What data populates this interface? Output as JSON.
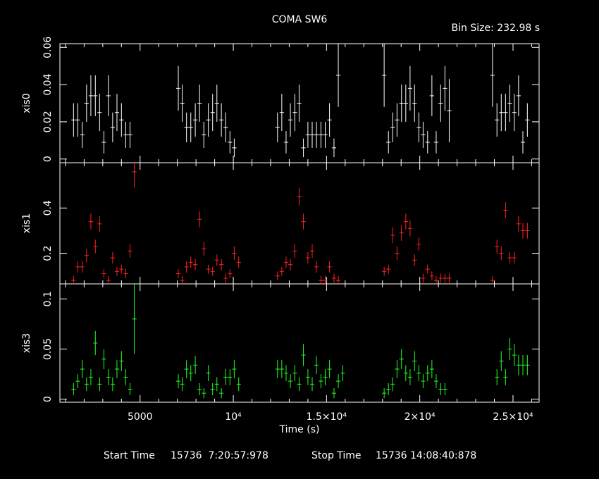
{
  "header": {
    "title": "COMA SW6",
    "bin_size": "Bin Size: 232.98 s"
  },
  "footer": {
    "start_label": "Start Time",
    "start_value": "15736  7:20:57:978",
    "stop_label": "Stop Time",
    "stop_value": "15736 14:08:40:878"
  },
  "colors": {
    "background": "#000000",
    "axes": "#ffffff",
    "xis0": "#ffffff",
    "xis1": "#ff2020",
    "xis3": "#20ff20"
  },
  "chart_data": {
    "type": "scatter",
    "title": "COMA SW6",
    "xlabel": "Time (s)",
    "xlim": [
      700,
      26400
    ],
    "x_ticks": [
      {
        "value": 5000,
        "label": "5000"
      },
      {
        "value": 10000,
        "label": "10⁴"
      },
      {
        "value": 15000,
        "label": "1.5×10⁴"
      },
      {
        "value": 20000,
        "label": "2×10⁴"
      },
      {
        "value": 25000,
        "label": "2.5×10⁴"
      }
    ],
    "x_err": 116.5,
    "panels": [
      {
        "name": "xis0",
        "ylabel": "xis0",
        "ylim": [
          -0.002,
          0.062
        ],
        "y_ticks": [
          {
            "value": 0,
            "label": "0"
          },
          {
            "value": 0.02,
            "label": "0.02"
          },
          {
            "value": 0.04,
            "label": "0.04"
          },
          {
            "value": 0.06,
            "label": "0.06"
          }
        ],
        "points": [
          [
            1430,
            0.021,
            0.009
          ],
          [
            1660,
            0.021,
            0.009
          ],
          [
            1900,
            0.013,
            0.007
          ],
          [
            2130,
            0.03,
            0.01
          ],
          [
            2360,
            0.034,
            0.011
          ],
          [
            2600,
            0.034,
            0.011
          ],
          [
            2830,
            0.025,
            0.01
          ],
          [
            3060,
            0.009,
            0.006
          ],
          [
            3300,
            0.034,
            0.011
          ],
          [
            3530,
            0.017,
            0.008
          ],
          [
            3760,
            0.025,
            0.01
          ],
          [
            4000,
            0.021,
            0.009
          ],
          [
            4230,
            0.013,
            0.007
          ],
          [
            4460,
            0.013,
            0.007
          ],
          [
            7050,
            0.038,
            0.012
          ],
          [
            7260,
            0.03,
            0.01
          ],
          [
            7490,
            0.017,
            0.008
          ],
          [
            7720,
            0.017,
            0.008
          ],
          [
            7960,
            0.021,
            0.009
          ],
          [
            8190,
            0.03,
            0.01
          ],
          [
            8420,
            0.013,
            0.007
          ],
          [
            8660,
            0.021,
            0.009
          ],
          [
            8890,
            0.025,
            0.01
          ],
          [
            9120,
            0.03,
            0.01
          ],
          [
            9360,
            0.021,
            0.009
          ],
          [
            9590,
            0.017,
            0.008
          ],
          [
            9820,
            0.009,
            0.006
          ],
          [
            10050,
            0.006,
            0.005
          ],
          [
            12370,
            0.017,
            0.008
          ],
          [
            12600,
            0.025,
            0.01
          ],
          [
            12830,
            0.009,
            0.006
          ],
          [
            13060,
            0.021,
            0.009
          ],
          [
            13300,
            0.025,
            0.01
          ],
          [
            13530,
            0.03,
            0.01
          ],
          [
            13760,
            0.006,
            0.005
          ],
          [
            14000,
            0.013,
            0.007
          ],
          [
            14230,
            0.013,
            0.007
          ],
          [
            14460,
            0.013,
            0.007
          ],
          [
            14700,
            0.013,
            0.007
          ],
          [
            14930,
            0.013,
            0.007
          ],
          [
            15160,
            0.021,
            0.009
          ],
          [
            15400,
            0.006,
            0.005
          ],
          [
            15630,
            0.045,
            0.017
          ],
          [
            18090,
            0.045,
            0.017
          ],
          [
            18320,
            0.009,
            0.006
          ],
          [
            18550,
            0.017,
            0.008
          ],
          [
            18780,
            0.021,
            0.009
          ],
          [
            19020,
            0.03,
            0.01
          ],
          [
            19250,
            0.03,
            0.01
          ],
          [
            19480,
            0.038,
            0.012
          ],
          [
            19720,
            0.03,
            0.01
          ],
          [
            19950,
            0.017,
            0.008
          ],
          [
            20180,
            0.013,
            0.007
          ],
          [
            20420,
            0.009,
            0.006
          ],
          [
            20650,
            0.034,
            0.011
          ],
          [
            20880,
            0.009,
            0.006
          ],
          [
            21120,
            0.03,
            0.01
          ],
          [
            21350,
            0.038,
            0.012
          ],
          [
            21580,
            0.026,
            0.017
          ],
          [
            23900,
            0.045,
            0.017
          ],
          [
            24140,
            0.021,
            0.009
          ],
          [
            24370,
            0.025,
            0.01
          ],
          [
            24600,
            0.025,
            0.01
          ],
          [
            24830,
            0.03,
            0.01
          ],
          [
            25070,
            0.025,
            0.01
          ],
          [
            25300,
            0.034,
            0.011
          ],
          [
            25530,
            0.009,
            0.006
          ],
          [
            25770,
            0.021,
            0.009
          ]
        ]
      },
      {
        "name": "xis1",
        "ylabel": "xis1",
        "ylim": [
          0.065,
          0.6
        ],
        "y_ticks": [
          {
            "value": 0.2,
            "label": "0.2"
          },
          {
            "value": 0.4,
            "label": "0.4"
          }
        ],
        "points": [
          [
            1430,
            0.08,
            0.02
          ],
          [
            1660,
            0.14,
            0.025
          ],
          [
            1900,
            0.14,
            0.025
          ],
          [
            2130,
            0.19,
            0.03
          ],
          [
            2360,
            0.34,
            0.035
          ],
          [
            2600,
            0.23,
            0.03
          ],
          [
            2830,
            0.33,
            0.035
          ],
          [
            3060,
            0.11,
            0.02
          ],
          [
            3300,
            0.08,
            0.02
          ],
          [
            3530,
            0.18,
            0.025
          ],
          [
            3760,
            0.12,
            0.02
          ],
          [
            4000,
            0.13,
            0.02
          ],
          [
            4230,
            0.11,
            0.02
          ],
          [
            4460,
            0.21,
            0.03
          ],
          [
            4690,
            0.56,
            0.07
          ],
          [
            7050,
            0.11,
            0.02
          ],
          [
            7260,
            0.08,
            0.02
          ],
          [
            7490,
            0.14,
            0.025
          ],
          [
            7720,
            0.16,
            0.025
          ],
          [
            7960,
            0.15,
            0.025
          ],
          [
            8190,
            0.35,
            0.035
          ],
          [
            8420,
            0.22,
            0.03
          ],
          [
            8660,
            0.13,
            0.02
          ],
          [
            8890,
            0.12,
            0.02
          ],
          [
            9120,
            0.17,
            0.025
          ],
          [
            9360,
            0.15,
            0.025
          ],
          [
            9590,
            0.09,
            0.02
          ],
          [
            9820,
            0.11,
            0.02
          ],
          [
            10050,
            0.2,
            0.03
          ],
          [
            10290,
            0.16,
            0.025
          ],
          [
            12370,
            0.1,
            0.02
          ],
          [
            12600,
            0.12,
            0.02
          ],
          [
            12830,
            0.16,
            0.025
          ],
          [
            13060,
            0.15,
            0.025
          ],
          [
            13300,
            0.21,
            0.03
          ],
          [
            13530,
            0.45,
            0.04
          ],
          [
            13760,
            0.34,
            0.035
          ],
          [
            14000,
            0.18,
            0.025
          ],
          [
            14230,
            0.21,
            0.03
          ],
          [
            14460,
            0.14,
            0.025
          ],
          [
            14700,
            0.08,
            0.02
          ],
          [
            14930,
            0.08,
            0.02
          ],
          [
            15160,
            0.14,
            0.025
          ],
          [
            15400,
            0.09,
            0.02
          ],
          [
            15630,
            0.08,
            0.02
          ],
          [
            18090,
            0.12,
            0.02
          ],
          [
            18320,
            0.13,
            0.02
          ],
          [
            18550,
            0.28,
            0.035
          ],
          [
            18780,
            0.2,
            0.03
          ],
          [
            19020,
            0.29,
            0.035
          ],
          [
            19250,
            0.34,
            0.035
          ],
          [
            19480,
            0.31,
            0.035
          ],
          [
            19720,
            0.17,
            0.025
          ],
          [
            19950,
            0.24,
            0.03
          ],
          [
            20180,
            0.09,
            0.02
          ],
          [
            20420,
            0.13,
            0.02
          ],
          [
            20650,
            0.1,
            0.02
          ],
          [
            20880,
            0.08,
            0.02
          ],
          [
            21120,
            0.09,
            0.02
          ],
          [
            21350,
            0.09,
            0.02
          ],
          [
            21580,
            0.09,
            0.02
          ],
          [
            23900,
            0.08,
            0.02
          ],
          [
            24140,
            0.23,
            0.03
          ],
          [
            24370,
            0.2,
            0.03
          ],
          [
            24600,
            0.39,
            0.035
          ],
          [
            24830,
            0.18,
            0.025
          ],
          [
            25070,
            0.18,
            0.025
          ],
          [
            25300,
            0.33,
            0.035
          ],
          [
            25530,
            0.3,
            0.035
          ],
          [
            25770,
            0.3,
            0.035
          ]
        ]
      },
      {
        "name": "xis3",
        "ylabel": "xis3",
        "ylim": [
          -0.003,
          0.115
        ],
        "y_ticks": [
          {
            "value": 0,
            "label": "0"
          },
          {
            "value": 0.05,
            "label": "0.05"
          },
          {
            "value": 0.1,
            "label": "0.1"
          }
        ],
        "points": [
          [
            1430,
            0.01,
            0.006
          ],
          [
            1660,
            0.018,
            0.007
          ],
          [
            1900,
            0.03,
            0.009
          ],
          [
            2130,
            0.015,
            0.007
          ],
          [
            2360,
            0.022,
            0.008
          ],
          [
            2600,
            0.056,
            0.012
          ],
          [
            2830,
            0.015,
            0.007
          ],
          [
            3060,
            0.04,
            0.01
          ],
          [
            3300,
            0.022,
            0.008
          ],
          [
            3530,
            0.015,
            0.007
          ],
          [
            3760,
            0.03,
            0.009
          ],
          [
            4000,
            0.038,
            0.01
          ],
          [
            4230,
            0.022,
            0.008
          ],
          [
            4460,
            0.01,
            0.006
          ],
          [
            4690,
            0.08,
            0.035
          ],
          [
            7050,
            0.018,
            0.007
          ],
          [
            7260,
            0.015,
            0.007
          ],
          [
            7490,
            0.03,
            0.009
          ],
          [
            7720,
            0.026,
            0.008
          ],
          [
            7960,
            0.034,
            0.009
          ],
          [
            8190,
            0.01,
            0.006
          ],
          [
            8420,
            0.006,
            0.005
          ],
          [
            8660,
            0.026,
            0.008
          ],
          [
            8890,
            0.01,
            0.006
          ],
          [
            9120,
            0.015,
            0.007
          ],
          [
            9360,
            0.006,
            0.005
          ],
          [
            9590,
            0.022,
            0.008
          ],
          [
            9820,
            0.022,
            0.008
          ],
          [
            10050,
            0.03,
            0.009
          ],
          [
            10290,
            0.015,
            0.007
          ],
          [
            12370,
            0.03,
            0.009
          ],
          [
            12600,
            0.03,
            0.009
          ],
          [
            12830,
            0.026,
            0.008
          ],
          [
            13060,
            0.018,
            0.007
          ],
          [
            13300,
            0.026,
            0.008
          ],
          [
            13530,
            0.015,
            0.007
          ],
          [
            13760,
            0.044,
            0.011
          ],
          [
            14000,
            0.022,
            0.008
          ],
          [
            14230,
            0.015,
            0.007
          ],
          [
            14460,
            0.034,
            0.009
          ],
          [
            14700,
            0.018,
            0.007
          ],
          [
            14930,
            0.022,
            0.008
          ],
          [
            15160,
            0.03,
            0.009
          ],
          [
            15400,
            0.006,
            0.005
          ],
          [
            15630,
            0.018,
            0.007
          ],
          [
            15870,
            0.026,
            0.008
          ],
          [
            18090,
            0.006,
            0.005
          ],
          [
            18320,
            0.01,
            0.006
          ],
          [
            18550,
            0.015,
            0.007
          ],
          [
            18780,
            0.03,
            0.009
          ],
          [
            19020,
            0.04,
            0.01
          ],
          [
            19250,
            0.026,
            0.008
          ],
          [
            19480,
            0.022,
            0.008
          ],
          [
            19720,
            0.038,
            0.01
          ],
          [
            19950,
            0.026,
            0.008
          ],
          [
            20180,
            0.018,
            0.007
          ],
          [
            20420,
            0.026,
            0.008
          ],
          [
            20650,
            0.03,
            0.009
          ],
          [
            20880,
            0.018,
            0.007
          ],
          [
            21120,
            0.01,
            0.006
          ],
          [
            21350,
            0.01,
            0.006
          ],
          [
            24140,
            0.022,
            0.008
          ],
          [
            24370,
            0.038,
            0.01
          ],
          [
            24600,
            0.022,
            0.008
          ],
          [
            24830,
            0.05,
            0.011
          ],
          [
            25070,
            0.044,
            0.011
          ],
          [
            25300,
            0.034,
            0.01
          ],
          [
            25530,
            0.034,
            0.01
          ],
          [
            25770,
            0.034,
            0.01
          ]
        ]
      }
    ]
  }
}
